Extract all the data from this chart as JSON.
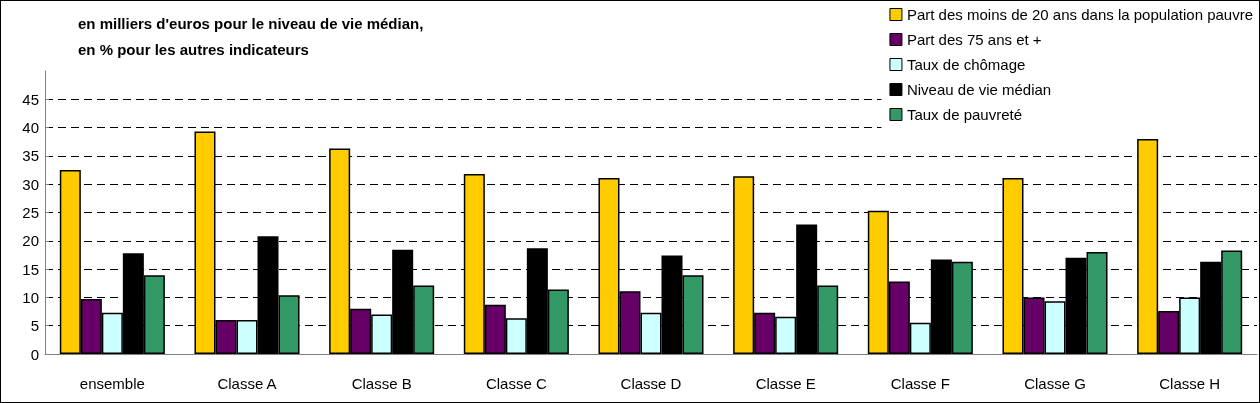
{
  "chart_data": {
    "type": "bar",
    "title": "en milliers d'euros pour le niveau de vie médian,\nen % pour les autres indicateurs",
    "categories": [
      "ensemble",
      "Classe A",
      "Classe B",
      "Classe C",
      "Classe D",
      "Classe E",
      "Classe F",
      "Classe G",
      "Classe H"
    ],
    "series": [
      {
        "name": "Part des moins de 20 ans dans la population pauvre",
        "color": "#ffcc00",
        "values": [
          32.5,
          39.3,
          36.3,
          31.8,
          31.1,
          31.4,
          25.3,
          31.1,
          38.0
        ]
      },
      {
        "name": "Part des 75 ans et +",
        "color": "#660066",
        "values": [
          9.7,
          6.0,
          8.0,
          8.7,
          11.1,
          7.3,
          12.8,
          10.0,
          7.6
        ]
      },
      {
        "name": "Taux de chômage",
        "color": "#ccffff",
        "values": [
          7.3,
          6.0,
          7.0,
          6.3,
          7.3,
          6.6,
          5.5,
          9.3,
          10.0
        ]
      },
      {
        "name": "Niveau de vie médian",
        "color": "#000000",
        "values": [
          17.8,
          20.8,
          18.4,
          18.7,
          17.4,
          22.9,
          16.7,
          17.0,
          16.3
        ]
      },
      {
        "name": "Taux de pauvreté",
        "color": "#339966",
        "values": [
          13.9,
          10.4,
          12.1,
          11.4,
          13.9,
          12.1,
          16.3,
          18.0,
          18.3
        ]
      }
    ],
    "ylim": [
      0,
      50
    ],
    "yticks": [
      0,
      5,
      10,
      15,
      20,
      25,
      30,
      35,
      40,
      45
    ],
    "grid": "y",
    "legend": "top right"
  }
}
